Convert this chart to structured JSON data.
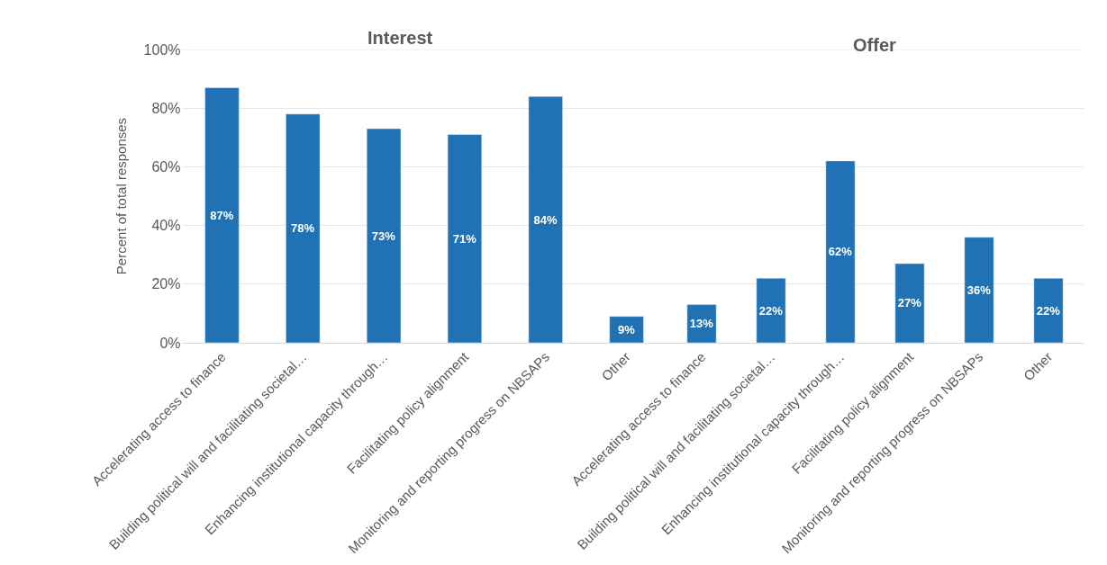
{
  "chart_data": [
    {
      "type": "bar",
      "title": "Interest",
      "ylabel": "Percent of total responses",
      "categories": [
        "Accelerating access to finance",
        "Building political will and facilitating societal…",
        "Enhancing institutional capacity through…",
        "Facilitating policy alignment",
        "Monitoring and reporting progress on NBSAPs",
        "Other"
      ],
      "values": [
        87,
        78,
        73,
        71,
        84,
        9
      ],
      "value_labels": [
        "87%",
        "78%",
        "73%",
        "71%",
        "84%",
        "9%"
      ],
      "color": "#2172b5",
      "ylim": [
        0,
        100
      ],
      "yticks": [
        {
          "value": 0,
          "label": "0%"
        },
        {
          "value": 20,
          "label": "20%"
        },
        {
          "value": 40,
          "label": "40%"
        },
        {
          "value": 60,
          "label": "60%"
        },
        {
          "value": 80,
          "label": "80%"
        },
        {
          "value": 100,
          "label": "100%"
        }
      ],
      "grid": "y"
    },
    {
      "type": "bar",
      "title": "Offer",
      "categories": [
        "Accelerating access to finance",
        "Building political will and facilitating societal…",
        "Enhancing institutional capacity through…",
        "Facilitating policy alignment",
        "Monitoring and reporting progress on NBSAPs",
        "Other"
      ],
      "values": [
        13,
        22,
        62,
        27,
        36,
        22
      ],
      "value_labels": [
        "13%",
        "22%",
        "62%",
        "27%",
        "36%",
        "22%"
      ],
      "color": "#2172b5",
      "ylim": [
        0,
        100
      ],
      "yticks": [
        {
          "value": 0,
          "label": null
        },
        {
          "value": 20,
          "label": null
        },
        {
          "value": 40,
          "label": null
        },
        {
          "value": 60,
          "label": null
        },
        {
          "value": 80,
          "label": null
        },
        {
          "value": 100,
          "label": null
        }
      ],
      "grid": "y"
    }
  ]
}
